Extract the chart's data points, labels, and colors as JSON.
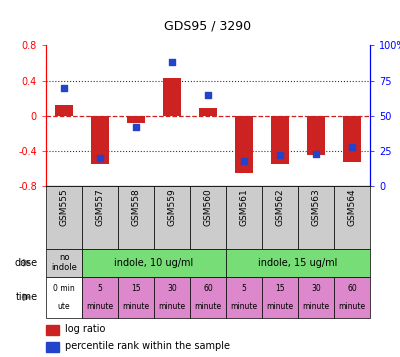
{
  "title": "GDS95 / 3290",
  "samples": [
    "GSM555",
    "GSM557",
    "GSM558",
    "GSM559",
    "GSM560",
    "GSM561",
    "GSM562",
    "GSM563",
    "GSM564"
  ],
  "log_ratio": [
    0.12,
    -0.55,
    -0.08,
    0.43,
    0.09,
    -0.65,
    -0.55,
    -0.44,
    -0.52
  ],
  "percentile": [
    70,
    20,
    42,
    88,
    65,
    18,
    22,
    23,
    28
  ],
  "ylim_left": [
    -0.8,
    0.8
  ],
  "ylim_right": [
    0,
    100
  ],
  "yticks_left": [
    -0.8,
    -0.4,
    0.0,
    0.4,
    0.8
  ],
  "ytick_labels_left": [
    "-0.8",
    "-0.4",
    "0",
    "0.4",
    "0.8"
  ],
  "yticks_right": [
    0,
    25,
    50,
    75,
    100
  ],
  "ytick_labels_right": [
    "0",
    "25",
    "50",
    "75",
    "100%"
  ],
  "bar_color": "#cc2222",
  "dot_color": "#2244cc",
  "hline_color": "#cc2222",
  "dotline_color": "#333333",
  "dose_no_indole_color": "#cccccc",
  "dose_indole_color": "#77dd77",
  "time_t0_color": "#ffffff",
  "time_other_color": "#dd88cc",
  "legend_red": "log ratio",
  "legend_blue": "percentile rank within the sample",
  "dose_label": "dose",
  "time_label": "time",
  "bar_width": 0.5
}
